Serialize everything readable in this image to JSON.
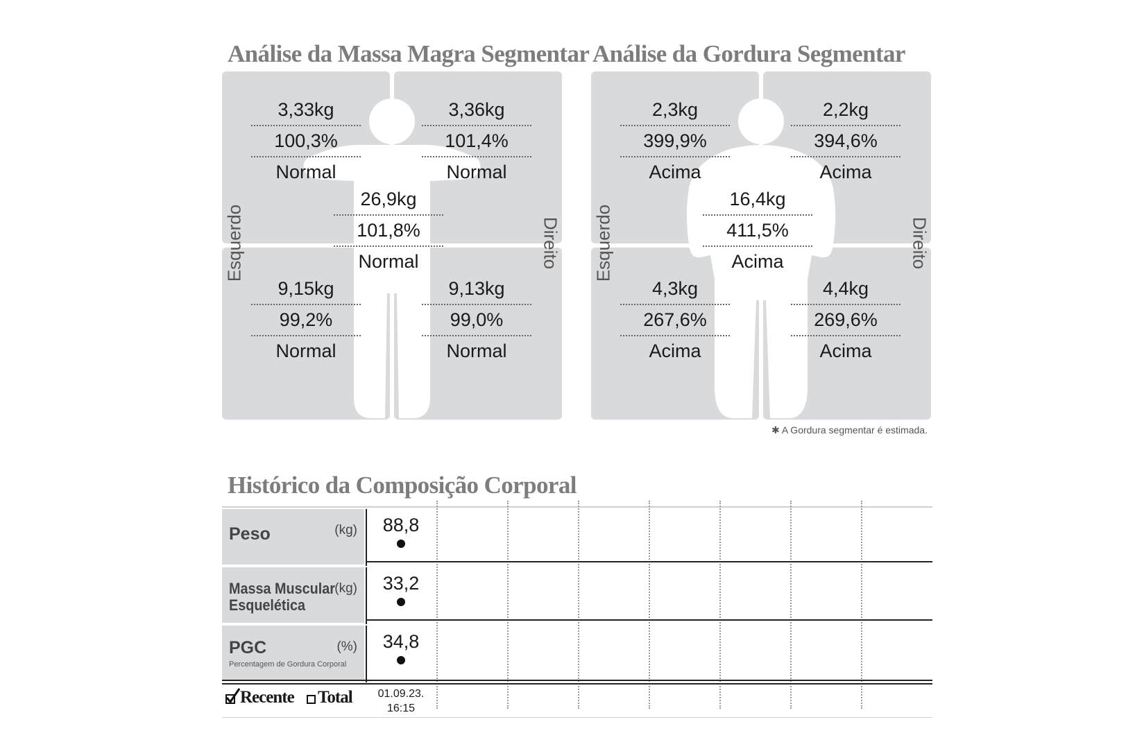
{
  "lean": {
    "title": "Análise da Massa Magra Segmentar",
    "left_label": "Esquerdo",
    "right_label": "Direito",
    "segments": {
      "left_arm": {
        "kg": "3,33kg",
        "pct": "100,3%",
        "status": "Normal"
      },
      "right_arm": {
        "kg": "3,36kg",
        "pct": "101,4%",
        "status": "Normal"
      },
      "trunk": {
        "kg": "26,9kg",
        "pct": "101,8%",
        "status": "Normal"
      },
      "left_leg": {
        "kg": "9,15kg",
        "pct": "99,2%",
        "status": "Normal"
      },
      "right_leg": {
        "kg": "9,13kg",
        "pct": "99,0%",
        "status": "Normal"
      }
    }
  },
  "fat": {
    "title": "Análise da Gordura Segmentar",
    "left_label": "Esquerdo",
    "right_label": "Direito",
    "segments": {
      "left_arm": {
        "kg": "2,3kg",
        "pct": "399,9%",
        "status": "Acima"
      },
      "right_arm": {
        "kg": "2,2kg",
        "pct": "394,6%",
        "status": "Acima"
      },
      "trunk": {
        "kg": "16,4kg",
        "pct": "411,5%",
        "status": "Acima"
      },
      "left_leg": {
        "kg": "4,3kg",
        "pct": "267,6%",
        "status": "Acima"
      },
      "right_leg": {
        "kg": "4,4kg",
        "pct": "269,6%",
        "status": "Acima"
      }
    },
    "footnote": "✱ A Gordura segmentar é estimada."
  },
  "history": {
    "title": "Histórico da Composição Corporal",
    "rows": [
      {
        "name": "Peso",
        "unit": "(kg)",
        "value": "88,8"
      },
      {
        "name": "Massa Muscular",
        "name2": "Esquelética",
        "unit": "(kg)",
        "value": "33,2"
      },
      {
        "name": "PGC",
        "subtitle": "Percentagem de Gordura Corporal",
        "unit": "(%)",
        "value": "34,8"
      }
    ],
    "recent_label": "Recente",
    "total_label": "Total",
    "date": "01.09.23.",
    "time": "16:15"
  }
}
